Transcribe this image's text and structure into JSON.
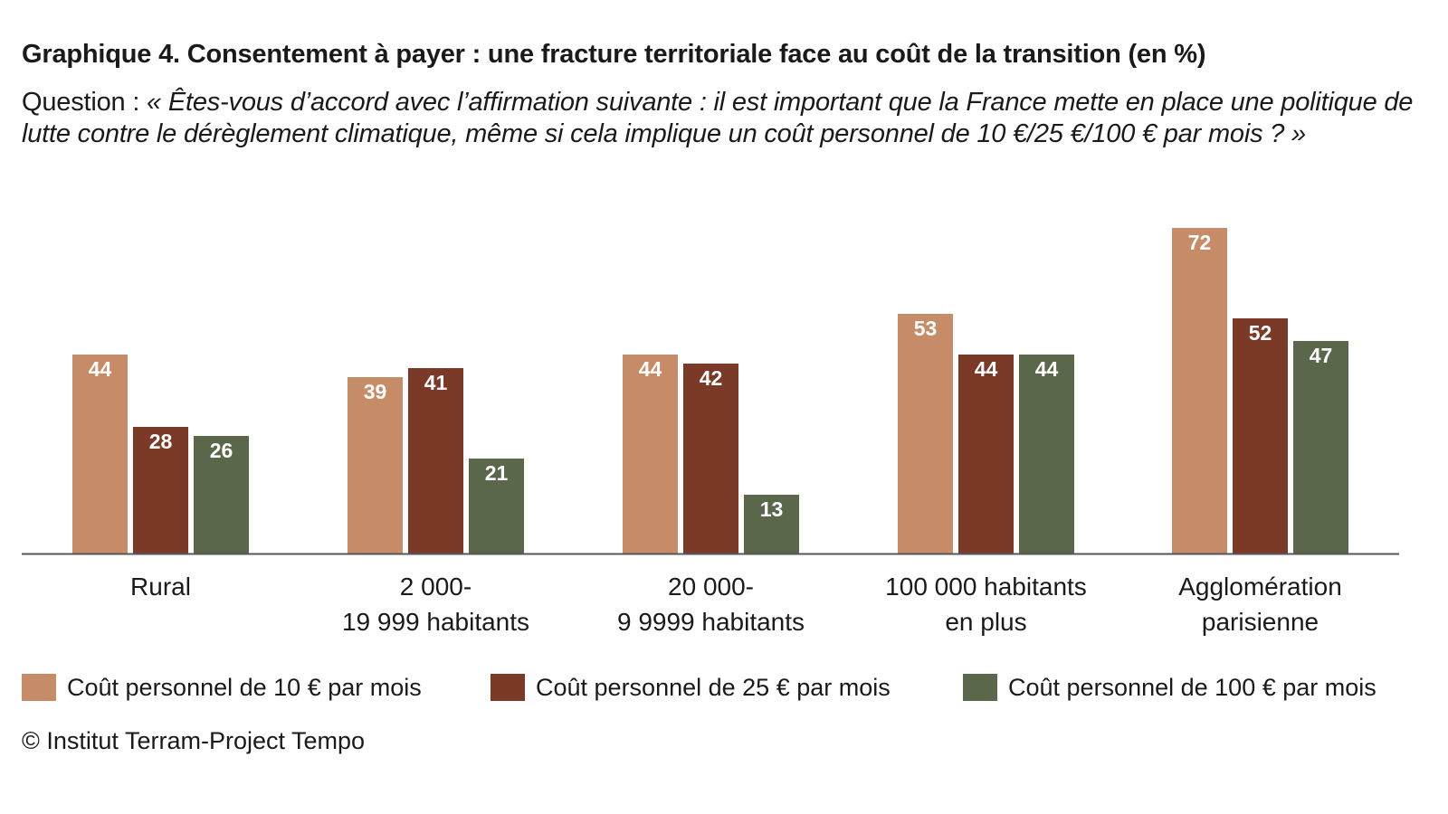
{
  "header": {
    "title_lead": "Graphique 4.",
    "title_rest": "Consentement à payer : une fracture territoriale face au coût de la transition (en %)",
    "question_label": "Question :",
    "question_text": "« Êtes-vous d’accord avec l’affirmation suivante : il est important que la France mette en place une politique de lutte contre le dérèglement climatique, même si cela implique un coût personnel de 10 €/25 €/100 € par mois ? »"
  },
  "chart_data": {
    "type": "bar",
    "title": "Graphique 4. Consentement à payer : une fracture territoriale face au coût de la transition (en %)",
    "categories": [
      [
        "Rural"
      ],
      [
        "2 000-",
        "19 999 habitants"
      ],
      [
        "20 000-",
        "9 9999 habitants"
      ],
      [
        "100 000 habitants",
        "en plus"
      ],
      [
        "Agglomération",
        "parisienne"
      ]
    ],
    "series": [
      {
        "name": "Coût personnel de 10 € par mois",
        "color": "#C68B67",
        "values": [
          44,
          39,
          44,
          53,
          72
        ]
      },
      {
        "name": "Coût personnel de 25 € par mois",
        "color": "#7B3A27",
        "values": [
          28,
          41,
          42,
          44,
          52
        ]
      },
      {
        "name": "Coût personnel de 100 € par mois",
        "color": "#5A674A",
        "values": [
          26,
          21,
          13,
          44,
          47
        ]
      }
    ],
    "ylim": [
      0,
      72
    ],
    "grid": false,
    "data_labels": true,
    "legend_position": "bottom"
  },
  "source": "© Institut Terram-Project Tempo"
}
